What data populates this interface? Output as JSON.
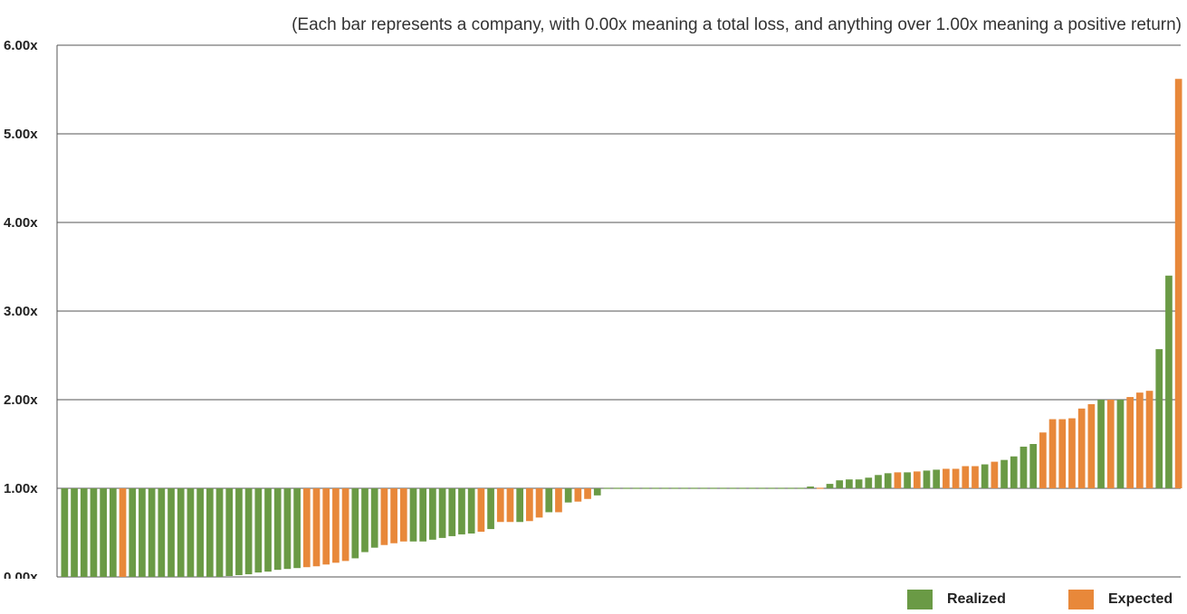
{
  "chart_data": {
    "type": "bar",
    "subtitle": "(Each bar represents a company, with 0.00x meaning a total loss, and anything over 1.00x meaning a positive return)",
    "ylim": [
      0,
      6
    ],
    "yticks": [
      "0.00x",
      "1.00x",
      "2.00x",
      "3.00x",
      "4.00x",
      "5.00x",
      "6.00x"
    ],
    "baseline": 1.0,
    "grid": true,
    "legend_position": "bottom-right",
    "series": [
      {
        "name": "Realized",
        "color": "#6a9a45"
      },
      {
        "name": "Expected",
        "color": "#e8883a"
      }
    ],
    "bars": [
      {
        "v": 0.0,
        "s": 0
      },
      {
        "v": 0.0,
        "s": 0
      },
      {
        "v": 0.0,
        "s": 0
      },
      {
        "v": 0.0,
        "s": 0
      },
      {
        "v": 0.0,
        "s": 0
      },
      {
        "v": 0.0,
        "s": 0
      },
      {
        "v": 0.0,
        "s": 1
      },
      {
        "v": 0.0,
        "s": 0
      },
      {
        "v": 0.0,
        "s": 0
      },
      {
        "v": 0.0,
        "s": 0
      },
      {
        "v": 0.0,
        "s": 0
      },
      {
        "v": 0.0,
        "s": 0
      },
      {
        "v": 0.0,
        "s": 0
      },
      {
        "v": 0.0,
        "s": 0
      },
      {
        "v": 0.0,
        "s": 0
      },
      {
        "v": 0.0,
        "s": 0
      },
      {
        "v": 0.0,
        "s": 0
      },
      {
        "v": 0.01,
        "s": 0
      },
      {
        "v": 0.02,
        "s": 0
      },
      {
        "v": 0.03,
        "s": 0
      },
      {
        "v": 0.05,
        "s": 0
      },
      {
        "v": 0.06,
        "s": 0
      },
      {
        "v": 0.08,
        "s": 0
      },
      {
        "v": 0.09,
        "s": 0
      },
      {
        "v": 0.1,
        "s": 0
      },
      {
        "v": 0.11,
        "s": 1
      },
      {
        "v": 0.12,
        "s": 1
      },
      {
        "v": 0.14,
        "s": 1
      },
      {
        "v": 0.16,
        "s": 1
      },
      {
        "v": 0.18,
        "s": 1
      },
      {
        "v": 0.21,
        "s": 0
      },
      {
        "v": 0.28,
        "s": 0
      },
      {
        "v": 0.33,
        "s": 0
      },
      {
        "v": 0.36,
        "s": 1
      },
      {
        "v": 0.38,
        "s": 1
      },
      {
        "v": 0.4,
        "s": 1
      },
      {
        "v": 0.4,
        "s": 0
      },
      {
        "v": 0.4,
        "s": 0
      },
      {
        "v": 0.42,
        "s": 0
      },
      {
        "v": 0.44,
        "s": 0
      },
      {
        "v": 0.46,
        "s": 0
      },
      {
        "v": 0.48,
        "s": 0
      },
      {
        "v": 0.49,
        "s": 0
      },
      {
        "v": 0.51,
        "s": 1
      },
      {
        "v": 0.54,
        "s": 0
      },
      {
        "v": 0.62,
        "s": 1
      },
      {
        "v": 0.62,
        "s": 1
      },
      {
        "v": 0.62,
        "s": 0
      },
      {
        "v": 0.63,
        "s": 1
      },
      {
        "v": 0.67,
        "s": 1
      },
      {
        "v": 0.73,
        "s": 0
      },
      {
        "v": 0.73,
        "s": 1
      },
      {
        "v": 0.84,
        "s": 0
      },
      {
        "v": 0.85,
        "s": 1
      },
      {
        "v": 0.88,
        "s": 1
      },
      {
        "v": 0.92,
        "s": 0
      },
      {
        "v": 1.0,
        "s": 0
      },
      {
        "v": 1.0,
        "s": 0
      },
      {
        "v": 1.0,
        "s": 0
      },
      {
        "v": 1.0,
        "s": 0
      },
      {
        "v": 1.0,
        "s": 0
      },
      {
        "v": 1.0,
        "s": 0
      },
      {
        "v": 1.0,
        "s": 0
      },
      {
        "v": 1.0,
        "s": 0
      },
      {
        "v": 1.0,
        "s": 0
      },
      {
        "v": 1.0,
        "s": 0
      },
      {
        "v": 1.0,
        "s": 0
      },
      {
        "v": 1.0,
        "s": 0
      },
      {
        "v": 1.0,
        "s": 0
      },
      {
        "v": 1.0,
        "s": 0
      },
      {
        "v": 1.0,
        "s": 0
      },
      {
        "v": 1.0,
        "s": 0
      },
      {
        "v": 1.0,
        "s": 0
      },
      {
        "v": 1.0,
        "s": 0
      },
      {
        "v": 1.0,
        "s": 0
      },
      {
        "v": 1.0,
        "s": 0
      },
      {
        "v": 1.01,
        "s": 0
      },
      {
        "v": 1.02,
        "s": 0
      },
      {
        "v": 1.01,
        "s": 1
      },
      {
        "v": 1.05,
        "s": 0
      },
      {
        "v": 1.09,
        "s": 0
      },
      {
        "v": 1.1,
        "s": 0
      },
      {
        "v": 1.1,
        "s": 0
      },
      {
        "v": 1.12,
        "s": 0
      },
      {
        "v": 1.15,
        "s": 0
      },
      {
        "v": 1.17,
        "s": 0
      },
      {
        "v": 1.18,
        "s": 1
      },
      {
        "v": 1.18,
        "s": 0
      },
      {
        "v": 1.19,
        "s": 1
      },
      {
        "v": 1.2,
        "s": 0
      },
      {
        "v": 1.21,
        "s": 0
      },
      {
        "v": 1.22,
        "s": 1
      },
      {
        "v": 1.22,
        "s": 1
      },
      {
        "v": 1.25,
        "s": 1
      },
      {
        "v": 1.25,
        "s": 1
      },
      {
        "v": 1.27,
        "s": 0
      },
      {
        "v": 1.3,
        "s": 1
      },
      {
        "v": 1.32,
        "s": 0
      },
      {
        "v": 1.36,
        "s": 0
      },
      {
        "v": 1.47,
        "s": 0
      },
      {
        "v": 1.5,
        "s": 0
      },
      {
        "v": 1.63,
        "s": 1
      },
      {
        "v": 1.78,
        "s": 1
      },
      {
        "v": 1.78,
        "s": 1
      },
      {
        "v": 1.79,
        "s": 1
      },
      {
        "v": 1.9,
        "s": 1
      },
      {
        "v": 1.95,
        "s": 1
      },
      {
        "v": 2.0,
        "s": 0
      },
      {
        "v": 2.0,
        "s": 1
      },
      {
        "v": 2.0,
        "s": 0
      },
      {
        "v": 2.03,
        "s": 1
      },
      {
        "v": 2.08,
        "s": 1
      },
      {
        "v": 2.1,
        "s": 1
      },
      {
        "v": 2.57,
        "s": 0
      },
      {
        "v": 3.4,
        "s": 0
      },
      {
        "v": 5.62,
        "s": 1
      }
    ]
  }
}
